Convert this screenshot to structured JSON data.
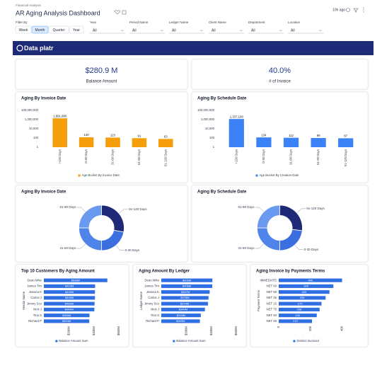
{
  "header": {
    "breadcrumb": "Financial Analysis",
    "title": "AR Aging Analysis Dashboard",
    "refreshed": "10h ago"
  },
  "filters": {
    "label": "Filter By",
    "periods": [
      "Week",
      "Month",
      "Quarter",
      "Year"
    ],
    "active_period": "Month",
    "dropdowns": [
      {
        "label": "Year",
        "value": "All"
      },
      {
        "label": "Period Name",
        "value": "All"
      },
      {
        "label": "Ledger Name",
        "value": "All"
      },
      {
        "label": "Client Name",
        "value": "All"
      },
      {
        "label": "Department",
        "value": "All"
      },
      {
        "label": "Location",
        "value": "All"
      }
    ]
  },
  "banner": {
    "logo": "Data platr"
  },
  "kpis": [
    {
      "value": "$280.9 M",
      "label": "Balance Amount"
    },
    {
      "value": "40.0%",
      "label": "# of Invoice"
    }
  ],
  "chart_data": [
    {
      "type": "bar",
      "title": "Aging By Invoice Date",
      "categories": [
        ">120 Days",
        "0-30 Days",
        "31-60 Days",
        "61-90 Days",
        "91-120 Days"
      ],
      "series": [
        {
          "name": "Age Bucket By Invoice Date",
          "color": "#f59e0b",
          "values": [
            1891880,
            140,
            123,
            91,
            63
          ],
          "value_labels": [
            "1,891,880",
            "140",
            "123",
            "91",
            "63"
          ]
        }
      ],
      "log_scale": true,
      "ylim": [
        1,
        100000000
      ],
      "yticks": [
        1,
        100,
        {
          "value": 10000,
          "label": "10,000"
        },
        {
          "value": 1000000,
          "label": "1,000,000"
        },
        {
          "value": 100000000,
          "label": "100,000,000"
        }
      ]
    },
    {
      "type": "bar",
      "title": "Aging By Schedule Date",
      "categories": [
        ">120 Days",
        "0-30 Days",
        "31-60 Days",
        "61-90 Days",
        "91-120 Days"
      ],
      "series": [
        {
          "name": "Age Bucket By Creation Date",
          "color": "#3b82f6",
          "values": [
            1337160,
            134,
            112,
            99,
            87
          ],
          "value_labels": [
            "1,337,160",
            "134",
            "112",
            "99",
            "87"
          ]
        }
      ],
      "log_scale": true,
      "ylim": [
        1,
        100000000
      ],
      "yticks": [
        1,
        100,
        {
          "value": 10000,
          "label": "10,000"
        },
        {
          "value": 1000000,
          "label": "1,000,000"
        },
        {
          "value": 100000000,
          "label": "100,000,000"
        }
      ]
    },
    {
      "type": "pie",
      "title": "Aging By Invoice Date",
      "hole": 0.55,
      "categories": [
        "91-120 Days",
        "0-30 Days",
        "31-60 Days",
        "61-90 Days"
      ],
      "values": [
        28,
        22,
        25,
        25
      ],
      "colors": [
        "#1e2a78",
        "#3b6fe0",
        "#4f85ea",
        "#6a9af0"
      ]
    },
    {
      "type": "pie",
      "title": "Aging By Schedule Date",
      "hole": 0.55,
      "categories": [
        "91-120 Days",
        "0-30 Days",
        "31-60 Days",
        "61-90 Days"
      ],
      "values": [
        27,
        23,
        25,
        25
      ],
      "colors": [
        "#1e2a78",
        "#3b6fe0",
        "#4f85ea",
        "#6a9af0"
      ]
    },
    {
      "type": "bar",
      "orientation": "horizontal",
      "title": "Top 10 Customers By Aging Amount",
      "y_label": "Vendor Name",
      "categories": [
        "Dean Mike",
        "James Tim",
        "Jessica K",
        "Carlos J",
        "Jimmy Sco",
        "Nick J",
        "Tina S",
        "Richard P"
      ],
      "series": [
        {
          "name": "Balance Amount Sum",
          "color": "#2f6fe4",
          "values": [
            508,
            410,
            409,
            409,
            406,
            404,
            365,
            363
          ],
          "value_labels": [
            "$508M",
            "$410M",
            "$409M",
            "$409M",
            "$406M",
            "$404M",
            "$365M",
            "$363M"
          ]
        }
      ],
      "xlim": [
        0,
        600
      ],
      "xticks": [
        {
          "value": 200,
          "label": "$200M"
        },
        {
          "value": 400,
          "label": "$400M"
        },
        {
          "value": 600,
          "label": "$600M"
        }
      ]
    },
    {
      "type": "bar",
      "orientation": "horizontal",
      "title": "Aging Amount By Ledger",
      "y_label": "Ledger Name",
      "categories": [
        "Dean Mike",
        "James Tim",
        "Jessica K",
        "Carlos J",
        "Jimmy Sco",
        "Nick J",
        "Tina S",
        "Richard P"
      ],
      "series": [
        {
          "name": "Balance Amount Sum",
          "color": "#2f6fe4",
          "values": [
            409,
            408,
            387,
            378,
            374,
            349,
            316,
            309
          ],
          "value_labels": [
            "$409M",
            "$408M",
            "$387M",
            "$378M",
            "$374M",
            "$349M",
            "$316M",
            "$309M"
          ]
        }
      ],
      "xlim": [
        0,
        600
      ],
      "xticks": [
        {
          "value": 200,
          "label": "$200M"
        },
        {
          "value": 400,
          "label": "$400M"
        },
        {
          "value": 600,
          "label": "$600M"
        }
      ]
    },
    {
      "type": "bar",
      "orientation": "horizontal",
      "title": "Aging Invoice by Payments Terms",
      "y_label": "Payment Terms",
      "categories": [
        "IMMEDIATE",
        "NET 60",
        "NET 58",
        "NET 45",
        "NET 15",
        "NET 75",
        "NET 40",
        "NET 25"
      ],
      "series": [
        {
          "name": "Distinct Invoiced",
          "color": "#2f6fe4",
          "values": [
            400,
            345,
            320,
            296,
            270,
            258,
            240,
            210
          ]
        }
      ],
      "xlim": [
        0,
        500
      ],
      "xticks": [
        0,
        200,
        400
      ]
    }
  ]
}
